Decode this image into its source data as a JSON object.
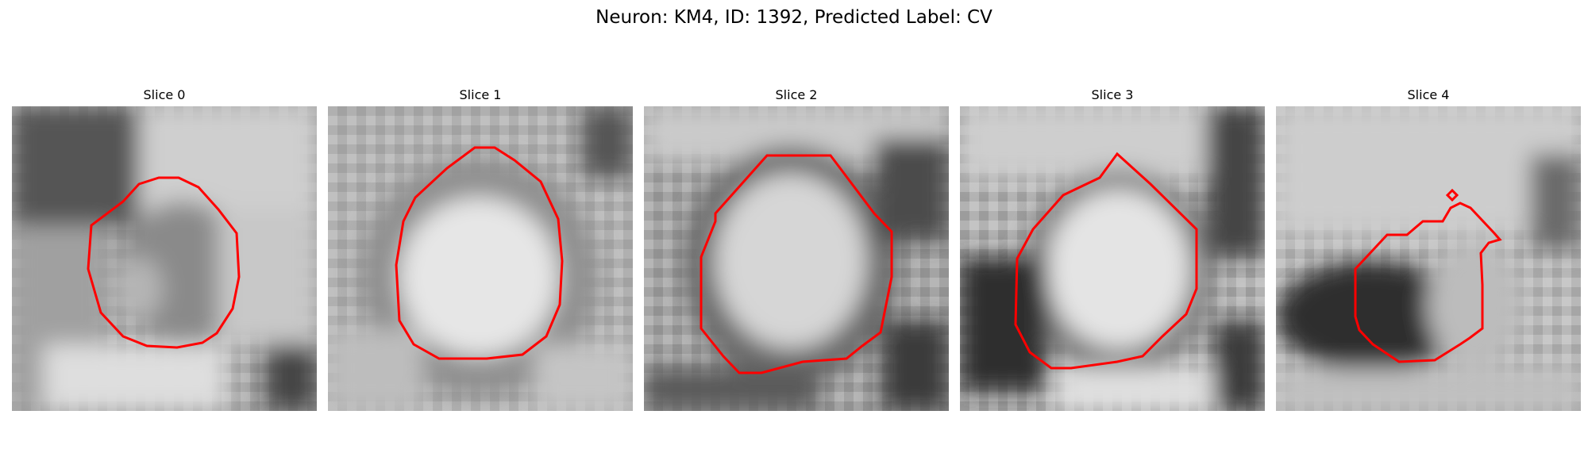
{
  "figure": {
    "title": "Neuron: KM4, ID: 1392, Predicted Label: CV"
  },
  "contour_color": "#ff0000",
  "panels": [
    {
      "title": "Slice 0"
    },
    {
      "title": "Slice 1"
    },
    {
      "title": "Slice 2"
    },
    {
      "title": "Slice 3"
    },
    {
      "title": "Slice 4"
    }
  ]
}
